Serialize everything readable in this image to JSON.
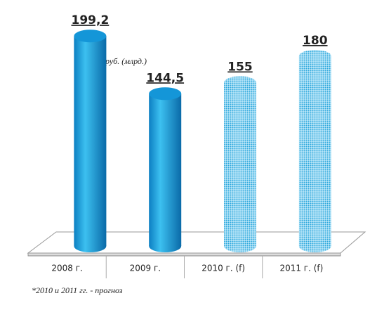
{
  "chart_data": {
    "type": "bar",
    "annotation": "руб. (млрд.)",
    "footnote": "*2010 и 2011 гг. - прогноз",
    "categories": [
      "2008 г.",
      "2009 г.",
      "2010 г. (f)",
      "2011 г. (f)"
    ],
    "values": [
      199.2,
      144.5,
      155,
      180
    ],
    "value_labels": [
      "199,2",
      "144,5",
      "155",
      "180"
    ],
    "hatched": [
      false,
      false,
      true,
      true
    ],
    "color": "#1496d8",
    "ylim": [
      0,
      200
    ]
  }
}
